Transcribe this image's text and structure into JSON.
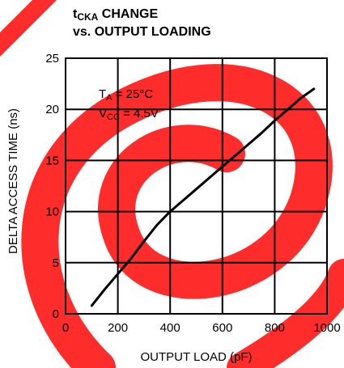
{
  "chart_data": {
    "type": "line",
    "title_prefix": "t",
    "title_sub": "CKA",
    "title_suffix": " CHANGE",
    "subtitle": "vs. OUTPUT LOADING",
    "xlabel": "OUTPUT LOAD (pF)",
    "ylabel": "DELTA ACCESS TIME (ns)",
    "xlim": [
      0,
      1000
    ],
    "ylim": [
      0,
      25
    ],
    "x_ticks": [
      "0",
      "200",
      "400",
      "600",
      "800",
      "1000"
    ],
    "y_ticks": [
      "0",
      "5",
      "10",
      "15",
      "20",
      "25"
    ],
    "grid": true,
    "series": [
      {
        "x": [
          100,
          150,
          200,
          250,
          300,
          350,
          400,
          450,
          500,
          550,
          600,
          650,
          700,
          750,
          800,
          850,
          900,
          950
        ],
        "y": [
          0.8,
          2.4,
          3.9,
          5.4,
          7.1,
          8.7,
          10.0,
          11.1,
          12.2,
          13.3,
          14.4,
          15.5,
          16.6,
          17.7,
          18.9,
          20.0,
          21.1,
          22.0
        ]
      }
    ],
    "annotations": {
      "ta_sym": "T",
      "ta_sub": "A",
      "ta_val": " = 25°C",
      "vcc_sym": "V",
      "vcc_sub": "CC",
      "vcc_val": " = 4.5V"
    },
    "colors": {
      "line": "#000000",
      "grid": "#000000",
      "watermark": "#ff0000"
    }
  }
}
